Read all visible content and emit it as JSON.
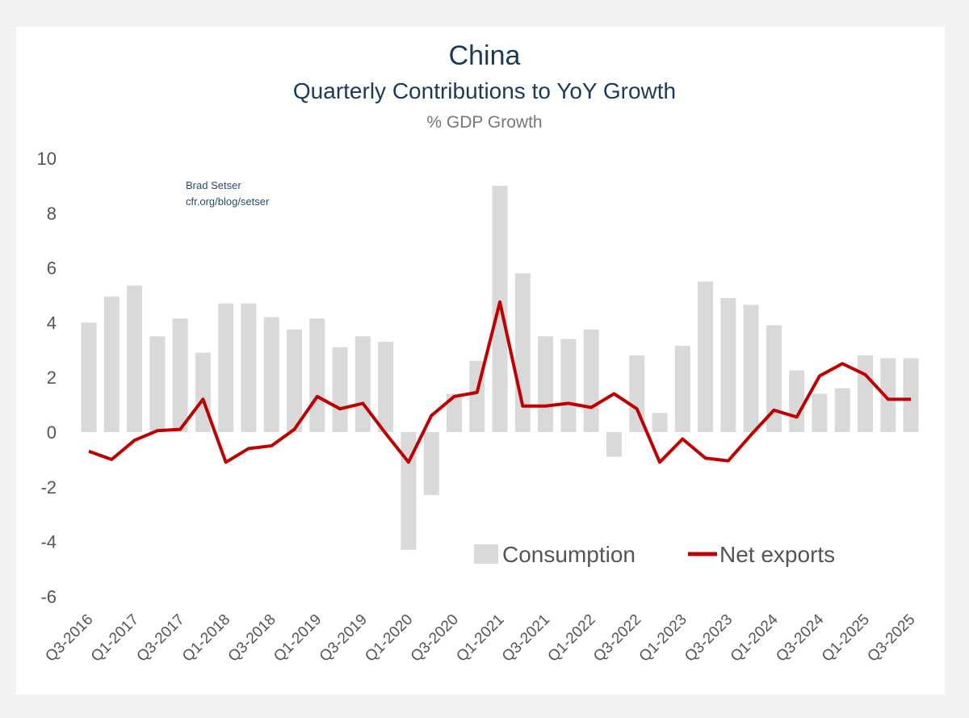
{
  "chart_data": {
    "type": "bar+line",
    "title": "China",
    "subtitle": "Quarterly Contributions to YoY Growth",
    "ylabel": "% GDP Growth",
    "source": [
      "Brad Setser",
      "cfr.org/blog/setser"
    ],
    "ylim": [
      -6,
      10
    ],
    "yticks": [
      10,
      8,
      6,
      4,
      2,
      0,
      -2,
      -4,
      -6
    ],
    "grid": false,
    "legend": "bottom-right",
    "categories": [
      "Q3-2016",
      "Q4-2016",
      "Q1-2017",
      "Q2-2017",
      "Q3-2017",
      "Q4-2017",
      "Q1-2018",
      "Q2-2018",
      "Q3-2018",
      "Q4-2018",
      "Q1-2019",
      "Q2-2019",
      "Q3-2019",
      "Q4-2019",
      "Q1-2020",
      "Q2-2020",
      "Q3-2020",
      "Q4-2020",
      "Q1-2021",
      "Q2-2021",
      "Q3-2021",
      "Q4-2021",
      "Q1-2022",
      "Q2-2022",
      "Q3-2022",
      "Q4-2022",
      "Q1-2023",
      "Q2-2023",
      "Q3-2023",
      "Q4-2023",
      "Q1-2024",
      "Q2-2024",
      "Q3-2024",
      "Q4-2024",
      "Q1-2025",
      "Q2-2025",
      "Q3-2025"
    ],
    "series": [
      {
        "name": "Consumption",
        "type": "bar",
        "color": "#d9d9d9",
        "values": [
          4.0,
          4.95,
          5.35,
          3.5,
          4.15,
          2.9,
          4.7,
          4.7,
          4.2,
          3.75,
          4.15,
          3.1,
          3.5,
          3.3,
          -4.3,
          -2.3,
          1.4,
          2.6,
          9.0,
          5.8,
          3.5,
          3.4,
          3.75,
          -0.9,
          2.8,
          0.7,
          3.15,
          5.5,
          4.9,
          4.65,
          3.9,
          2.25,
          1.4,
          1.6,
          2.8,
          2.7,
          2.7
        ]
      },
      {
        "name": "Net exports",
        "type": "line",
        "color": "#c00000",
        "values": [
          -0.7,
          -1.0,
          -0.3,
          0.05,
          0.1,
          1.2,
          -1.1,
          -0.6,
          -0.5,
          0.1,
          1.3,
          0.85,
          1.05,
          -0.05,
          -1.1,
          0.6,
          1.3,
          1.45,
          4.75,
          0.95,
          0.95,
          1.05,
          0.9,
          1.4,
          0.85,
          -1.1,
          -0.25,
          -0.95,
          -1.05,
          -0.1,
          0.8,
          0.55,
          2.05,
          2.5,
          2.1,
          1.2,
          1.2
        ]
      }
    ]
  }
}
